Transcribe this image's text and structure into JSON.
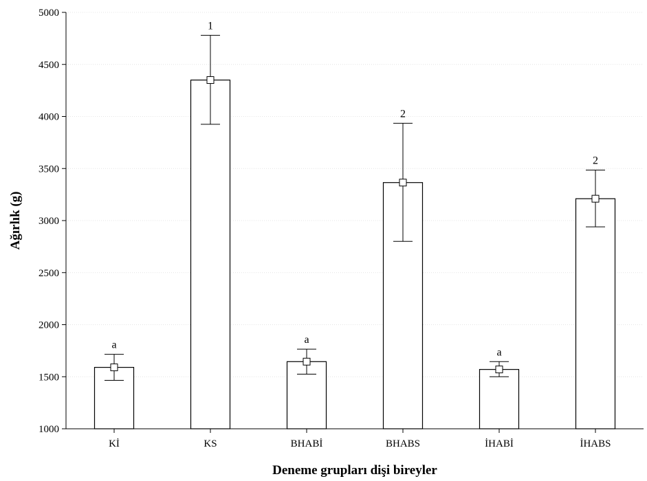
{
  "chart_data": {
    "type": "bar",
    "xlabel": "Deneme grupları dişi bireyler",
    "ylabel": "Ağırlık (g)",
    "ylim": [
      1000,
      5000
    ],
    "yticks": [
      1000,
      1500,
      2000,
      2500,
      3000,
      3500,
      4000,
      4500,
      5000
    ],
    "grid": true,
    "categories": [
      "Kİ",
      "KS",
      "BHABİ",
      "BHABS",
      "İHABİ",
      "İHABS"
    ],
    "values": [
      1590,
      4350,
      1645,
      3365,
      1570,
      3210
    ],
    "error_low": [
      1465,
      3925,
      1525,
      2800,
      1500,
      2940
    ],
    "error_high": [
      1715,
      4780,
      1765,
      3935,
      1645,
      3485
    ],
    "significance_labels": [
      "a",
      "1",
      "a",
      "2",
      "a",
      "2"
    ]
  }
}
